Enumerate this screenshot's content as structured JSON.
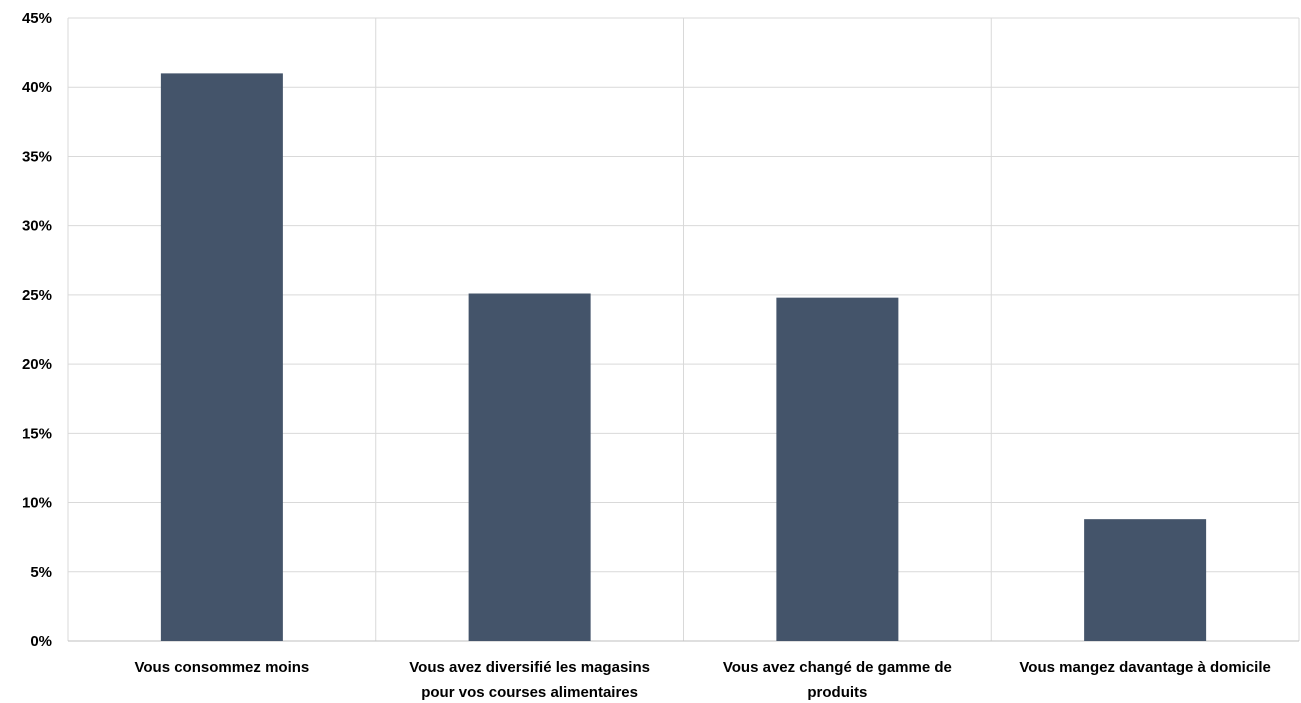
{
  "chart_data": {
    "type": "bar",
    "title": "",
    "xlabel": "",
    "ylabel": "",
    "categories": [
      [
        "Vous consommez moins"
      ],
      [
        "Vous avez diversifié les magasins",
        "pour vos courses alimentaires"
      ],
      [
        "Vous avez changé de gamme de",
        "produits"
      ],
      [
        "Vous mangez davantage à domicile"
      ]
    ],
    "values": [
      41,
      25.1,
      24.8,
      8.8
    ],
    "ylim": [
      0,
      45
    ],
    "yticks": [
      "0%",
      "5%",
      "10%",
      "15%",
      "20%",
      "25%",
      "30%",
      "35%",
      "40%",
      "45%"
    ],
    "ytick_values": [
      0,
      5,
      10,
      15,
      20,
      25,
      30,
      35,
      40,
      45
    ],
    "grid": true,
    "colors": {
      "bar": "#44546a",
      "grid": "#d9d9d9",
      "axis": "#bfbfbf"
    }
  }
}
